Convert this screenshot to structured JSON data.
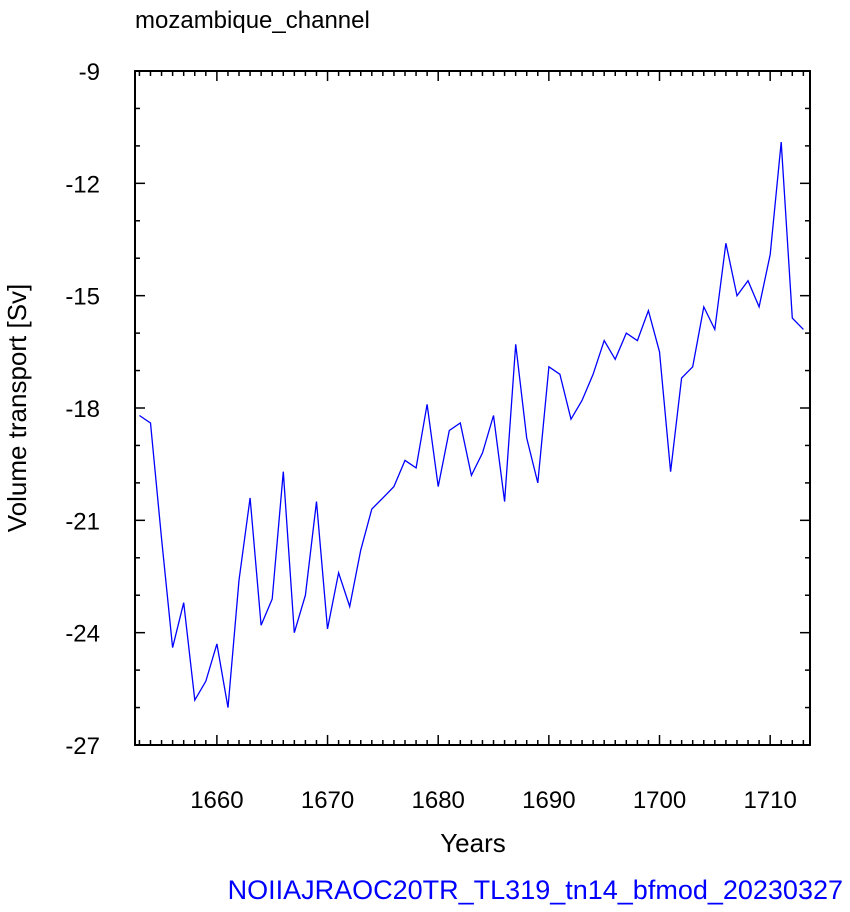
{
  "chart_data": {
    "type": "line",
    "title": "mozambique_channel",
    "xlabel": "Years",
    "ylabel": "Volume transport [Sv]",
    "caption": "NOIIAJRAOC20TR_TL319_tn14_bfmod_20230327",
    "xlim": [
      1652.6,
      1713.6
    ],
    "ylim": [
      -27,
      -9
    ],
    "x_ticks": [
      1660,
      1670,
      1680,
      1690,
      1700,
      1710
    ],
    "x_tick_labels": [
      "1660",
      "1670",
      "1680",
      "1690",
      "1700",
      "1710"
    ],
    "y_ticks": [
      -9,
      -12,
      -15,
      -18,
      -21,
      -24,
      -27
    ],
    "y_tick_labels": [
      "-9",
      "-12",
      "-15",
      "-18",
      "-21",
      "-24",
      "-27"
    ],
    "grid": false,
    "line_color": "#0000ff",
    "series": [
      {
        "x": [
          1653,
          1654,
          1655,
          1656,
          1657,
          1658,
          1659,
          1660,
          1661,
          1662,
          1663,
          1664,
          1665,
          1666,
          1667,
          1668,
          1669,
          1670,
          1671,
          1672,
          1673,
          1674,
          1675,
          1676,
          1677,
          1678,
          1679,
          1680,
          1681,
          1682,
          1683,
          1684,
          1685,
          1686,
          1687,
          1688,
          1689,
          1690,
          1691,
          1692,
          1693,
          1694,
          1695,
          1696,
          1697,
          1698,
          1699,
          1700,
          1701,
          1702,
          1703,
          1704,
          1705,
          1706,
          1707,
          1708,
          1709,
          1710,
          1711,
          1712,
          1713
        ],
        "values": [
          -18.2,
          -18.4,
          -21.5,
          -24.4,
          -23.2,
          -25.8,
          -25.3,
          -24.3,
          -26.0,
          -22.6,
          -20.4,
          -23.8,
          -23.1,
          -19.7,
          -24.0,
          -23.0,
          -20.5,
          -23.9,
          -22.4,
          -23.3,
          -21.8,
          -20.7,
          -20.4,
          -20.1,
          -19.4,
          -19.6,
          -17.9,
          -20.1,
          -18.6,
          -18.4,
          -19.8,
          -19.2,
          -18.2,
          -20.5,
          -16.3,
          -18.8,
          -20.0,
          -16.9,
          -17.1,
          -18.3,
          -17.8,
          -17.1,
          -16.2,
          -16.7,
          -16.0,
          -16.2,
          -15.4,
          -16.5,
          -19.7,
          -17.2,
          -16.9,
          -15.3,
          -15.9,
          -13.6,
          -15.0,
          -14.6,
          -15.3,
          -13.9,
          -10.9,
          -15.6,
          -15.9
        ]
      }
    ]
  }
}
